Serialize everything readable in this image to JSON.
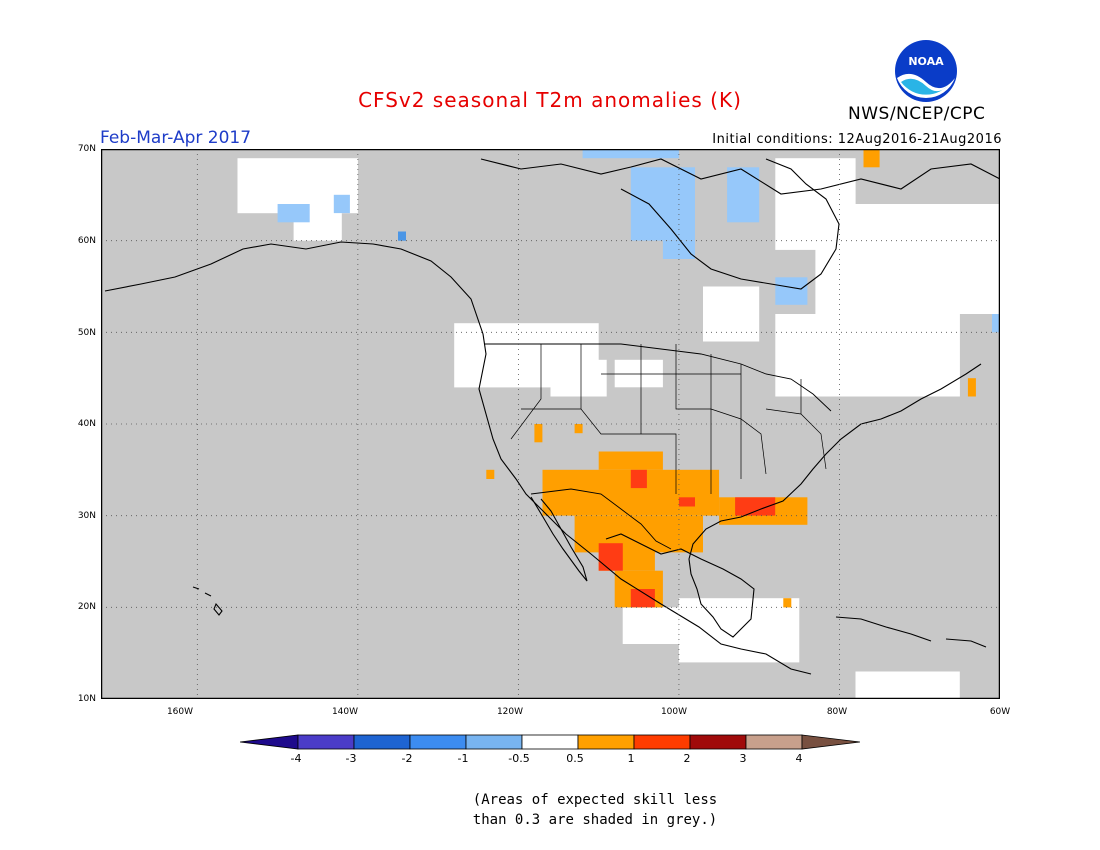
{
  "header": {
    "title": "CFSv2 seasonal T2m anomalies (K)",
    "period": "Feb-Mar-Apr 2017",
    "initial_conditions": "Initial conditions: 12Aug2016-21Aug2016",
    "agency": "NWS/NCEP/CPC",
    "logo_text": "NOAA"
  },
  "map": {
    "lon_range": [
      -172,
      -60
    ],
    "lat_range": [
      10,
      70
    ],
    "lat_labels": [
      "70N",
      "60N",
      "50N",
      "40N",
      "30N",
      "20N",
      "10N"
    ],
    "lon_labels": [
      "160W",
      "140W",
      "120W",
      "100W",
      "80W",
      "60W"
    ],
    "colors": {
      "low_skill": "#c8c8c8",
      "near_normal": "#ffffff",
      "cold_1": "#96c8fa",
      "cold_2": "#4b96e6",
      "warm_1": "#ff9f00",
      "warm_2": "#ff3c14",
      "coast": "#000000",
      "title": "#e60000",
      "period": "#1e3cc8"
    },
    "regions": [
      {
        "kind": "near_normal",
        "lon": [
          -155,
          -140
        ],
        "lat": [
          63,
          69
        ]
      },
      {
        "kind": "near_normal",
        "lon": [
          -148,
          -142
        ],
        "lat": [
          60,
          64
        ]
      },
      {
        "kind": "near_normal",
        "lon": [
          -128,
          -110
        ],
        "lat": [
          44,
          51
        ]
      },
      {
        "kind": "near_normal",
        "lon": [
          -116,
          -109
        ],
        "lat": [
          43,
          47
        ]
      },
      {
        "kind": "near_normal",
        "lon": [
          -108,
          -102
        ],
        "lat": [
          44,
          47
        ]
      },
      {
        "kind": "near_normal",
        "lon": [
          -97,
          -90
        ],
        "lat": [
          49,
          55
        ]
      },
      {
        "kind": "near_normal",
        "lon": [
          -83,
          -60
        ],
        "lat": [
          52,
          64
        ]
      },
      {
        "kind": "near_normal",
        "lon": [
          -88,
          -65
        ],
        "lat": [
          43,
          52
        ]
      },
      {
        "kind": "near_normal",
        "lon": [
          -88,
          -78
        ],
        "lat": [
          59,
          69
        ]
      },
      {
        "kind": "near_normal",
        "lon": [
          -100,
          -85
        ],
        "lat": [
          14,
          21
        ]
      },
      {
        "kind": "near_normal",
        "lon": [
          -78,
          -65
        ],
        "lat": [
          10,
          13
        ]
      },
      {
        "kind": "near_normal",
        "lon": [
          -107,
          -100
        ],
        "lat": [
          16,
          20
        ]
      },
      {
        "kind": "cold_1",
        "lon": [
          -150,
          -146
        ],
        "lat": [
          62,
          64
        ]
      },
      {
        "kind": "cold_1",
        "lon": [
          -143,
          -141
        ],
        "lat": [
          63,
          65
        ]
      },
      {
        "kind": "cold_1",
        "lon": [
          -106,
          -98
        ],
        "lat": [
          60,
          68
        ]
      },
      {
        "kind": "cold_1",
        "lon": [
          -102,
          -98
        ],
        "lat": [
          58,
          60
        ]
      },
      {
        "kind": "cold_1",
        "lon": [
          -94,
          -90
        ],
        "lat": [
          62,
          68
        ]
      },
      {
        "kind": "cold_1",
        "lon": [
          -88,
          -84
        ],
        "lat": [
          53,
          56
        ]
      },
      {
        "kind": "cold_1",
        "lon": [
          -112,
          -100
        ],
        "lat": [
          69,
          70
        ]
      },
      {
        "kind": "cold_1",
        "lon": [
          -61,
          -60
        ],
        "lat": [
          50,
          52
        ]
      },
      {
        "kind": "cold_2",
        "lon": [
          -135,
          -134
        ],
        "lat": [
          60,
          61
        ]
      },
      {
        "kind": "warm_1",
        "lon": [
          -117,
          -95
        ],
        "lat": [
          30,
          35
        ]
      },
      {
        "kind": "warm_1",
        "lon": [
          -113,
          -97
        ],
        "lat": [
          26,
          30
        ]
      },
      {
        "kind": "warm_1",
        "lon": [
          -110,
          -103
        ],
        "lat": [
          24,
          27
        ]
      },
      {
        "kind": "warm_1",
        "lon": [
          -108,
          -102
        ],
        "lat": [
          20,
          24
        ]
      },
      {
        "kind": "warm_1",
        "lon": [
          -110,
          -102
        ],
        "lat": [
          35,
          37
        ]
      },
      {
        "kind": "warm_1",
        "lon": [
          -95,
          -84
        ],
        "lat": [
          29,
          32
        ]
      },
      {
        "kind": "warm_1",
        "lon": [
          -118,
          -117
        ],
        "lat": [
          38,
          40
        ]
      },
      {
        "kind": "warm_1",
        "lon": [
          -113,
          -112
        ],
        "lat": [
          39,
          40
        ]
      },
      {
        "kind": "warm_1",
        "lon": [
          -124,
          -123
        ],
        "lat": [
          34,
          35
        ]
      },
      {
        "kind": "warm_2",
        "lon": [
          -106,
          -104
        ],
        "lat": [
          33,
          35
        ]
      },
      {
        "kind": "warm_2",
        "lon": [
          -93,
          -88
        ],
        "lat": [
          30,
          32
        ]
      },
      {
        "kind": "warm_2",
        "lon": [
          -110,
          -107
        ],
        "lat": [
          24,
          27
        ]
      },
      {
        "kind": "warm_2",
        "lon": [
          -106,
          -103
        ],
        "lat": [
          20,
          22
        ]
      },
      {
        "kind": "warm_2",
        "lon": [
          -100,
          -98
        ],
        "lat": [
          31,
          32
        ]
      },
      {
        "kind": "warm_1",
        "lon": [
          -64,
          -63
        ],
        "lat": [
          43,
          45
        ]
      },
      {
        "kind": "warm_1",
        "lon": [
          -87,
          -86
        ],
        "lat": [
          20,
          21
        ]
      },
      {
        "kind": "warm_1",
        "lon": [
          -77,
          -75
        ],
        "lat": [
          68,
          70
        ]
      }
    ]
  },
  "colorbar": {
    "ticks": [
      "-4",
      "-3",
      "-2",
      "-1",
      "-0.5",
      "0.5",
      "1",
      "2",
      "3",
      "4"
    ],
    "colors": [
      "#1e0a8c",
      "#4b3cc8",
      "#1e64d2",
      "#3c8cf0",
      "#78b4f0",
      "#ffffff",
      "#ffa000",
      "#ff3c00",
      "#a00a0a",
      "#c8a08c",
      "#785040"
    ]
  },
  "note": {
    "line1": "(Areas of expected skill less",
    "line2": "than 0.3 are shaded in grey.)"
  }
}
